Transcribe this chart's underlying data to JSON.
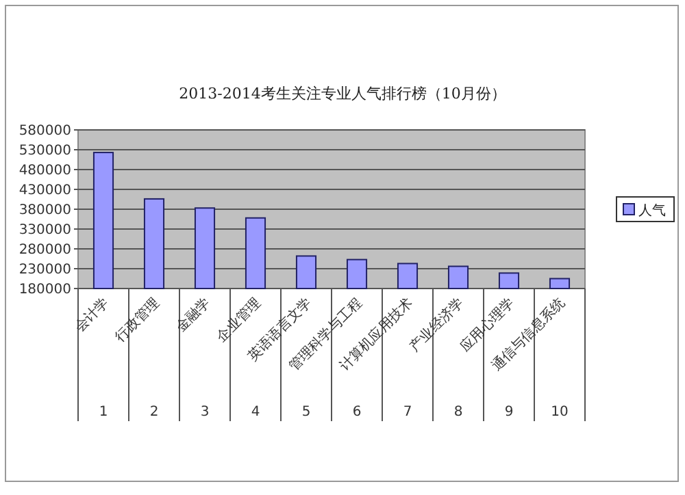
{
  "chart_data": {
    "type": "bar",
    "title": "2013-2014考生关注专业人气排行榜（10月份）",
    "categories": [
      "会计学",
      "行政管理",
      "金融学",
      "企业管理",
      "英语语言文学",
      "管理科学与工程",
      "计算机应用技术",
      "产业经济学",
      "应用心理学",
      "通信与信息系统"
    ],
    "series": [
      {
        "name": "人气",
        "color": "#9999ff",
        "values": [
          523000,
          406000,
          383000,
          358000,
          262000,
          253000,
          243000,
          236000,
          219000,
          205000
        ]
      }
    ],
    "ylim": [
      180000,
      580000
    ],
    "yticks": [
      180000,
      230000,
      280000,
      330000,
      380000,
      430000,
      480000,
      530000,
      580000
    ],
    "grid": "y",
    "legend": "right",
    "annotations": [
      "1",
      "2",
      "3",
      "4",
      "5",
      "6",
      "7",
      "8",
      "9",
      "10"
    ]
  }
}
